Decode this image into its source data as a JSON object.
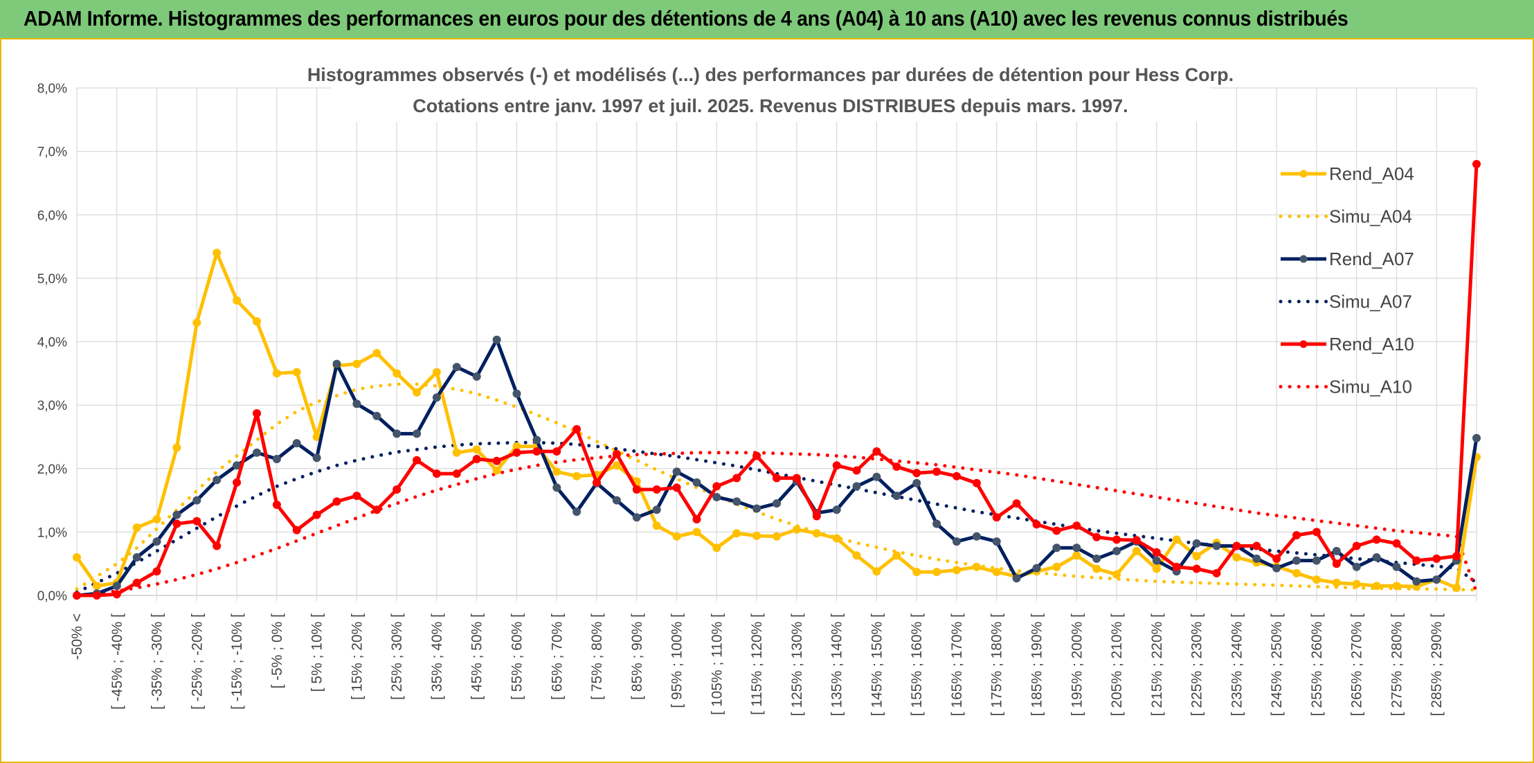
{
  "header": {
    "title": "ADAM Informe. Histogrammes des performances en euros pour des détentions de 4 ans (A04) à 10 ans (A10) avec les revenus connus distribués"
  },
  "chart_data": {
    "type": "line",
    "title": "Histogrammes observés (-) et modélisés (...) des performances par durées de détention pour Hess Corp.",
    "subtitle": "Cotations entre janv. 1997 et juil. 2025. Revenus DISTRIBUES depuis mars. 1997.",
    "xlabel": "",
    "ylabel": "",
    "ylim": [
      0,
      8
    ],
    "yticks": [
      "0,0%",
      "1,0%",
      "2,0%",
      "3,0%",
      "4,0%",
      "5,0%",
      "6,0%",
      "7,0%",
      "8,0%"
    ],
    "grid": true,
    "legend_position": "right",
    "x_tick_labels": [
      "-50% <",
      "[ -45% ; -40% [",
      "[ -35% ; -30% [",
      "[ -25% ; -20% [",
      "[ -15% ; -10% [",
      "[ -5% ; 0% [",
      "[ 5% ; 10% [",
      "[ 15% ; 20% [",
      "[ 25% ; 30% [",
      "[ 35% ; 40% [",
      "[ 45% ; 50% [",
      "[ 55% ; 60% [",
      "[ 65% ; 70% [",
      "[ 75% ; 80% [",
      "[ 85% ; 90% [",
      "[ 95% ; 100% [",
      "[ 105% ; 110% [",
      "[ 115% ; 120% [",
      "[ 125% ; 130% [",
      "[ 135% ; 140% [",
      "[ 145% ; 150% [",
      "[ 155% ; 160% [",
      "[ 165% ; 170% [",
      "[ 175% ; 180% [",
      "[ 185% ; 190% [",
      "[ 195% ; 200% [",
      "[ 205% ; 210% [",
      "[ 215% ; 220% [",
      "[ 225% ; 230% [",
      "[ 235% ; 240% [",
      "[ 245% ; 250% [",
      "[ 255% ; 260% [",
      "[ 265% ; 270% [",
      "[ 275% ; 280% [",
      "[ 285% ; 290% ["
    ],
    "category_count": 71,
    "series": [
      {
        "name": "Rend_A04",
        "color": "#FFC000",
        "style": "solid",
        "values": [
          0.6,
          0.15,
          0.2,
          1.07,
          1.2,
          2.33,
          4.3,
          5.4,
          4.65,
          4.32,
          3.5,
          3.52,
          2.5,
          3.62,
          3.65,
          3.82,
          3.5,
          3.2,
          3.52,
          2.25,
          2.3,
          1.97,
          2.35,
          2.35,
          1.95,
          1.88,
          1.9,
          2.05,
          1.8,
          1.1,
          0.93,
          1.0,
          0.75,
          0.98,
          0.94,
          0.93,
          1.04,
          0.98,
          0.9,
          0.63,
          0.38,
          0.63,
          0.37,
          0.37,
          0.4,
          0.45,
          0.37,
          0.3,
          0.38,
          0.45,
          0.63,
          0.42,
          0.33,
          0.7,
          0.42,
          0.88,
          0.62,
          0.83,
          0.6,
          0.52,
          0.46,
          0.35,
          0.25,
          0.2,
          0.18,
          0.15,
          0.15,
          0.14,
          0.25,
          0.12,
          2.18
        ]
      },
      {
        "name": "Simu_A04",
        "color": "#FFC000",
        "style": "dotted",
        "values": [
          0.1,
          0.3,
          0.5,
          0.75,
          1.05,
          1.35,
          1.65,
          1.95,
          2.2,
          2.45,
          2.7,
          2.9,
          3.05,
          3.15,
          3.25,
          3.3,
          3.33,
          3.33,
          3.3,
          3.25,
          3.18,
          3.08,
          2.97,
          2.85,
          2.72,
          2.58,
          2.43,
          2.28,
          2.13,
          1.98,
          1.84,
          1.7,
          1.57,
          1.44,
          1.32,
          1.2,
          1.1,
          1.0,
          0.91,
          0.83,
          0.76,
          0.69,
          0.63,
          0.57,
          0.52,
          0.47,
          0.43,
          0.39,
          0.36,
          0.33,
          0.3,
          0.28,
          0.26,
          0.24,
          0.22,
          0.21,
          0.2,
          0.19,
          0.18,
          0.17,
          0.16,
          0.15,
          0.14,
          0.13,
          0.12,
          0.11,
          0.11,
          0.1,
          0.1,
          0.09,
          0.09
        ]
      },
      {
        "name": "Rend_A07",
        "color": "#002060",
        "style": "solid",
        "values": [
          0.0,
          0.03,
          0.15,
          0.6,
          0.85,
          1.27,
          1.5,
          1.82,
          2.05,
          2.25,
          2.15,
          2.4,
          2.17,
          3.65,
          3.02,
          2.83,
          2.55,
          2.55,
          3.12,
          3.6,
          3.45,
          4.03,
          3.18,
          2.45,
          1.7,
          1.32,
          1.77,
          1.5,
          1.23,
          1.35,
          1.95,
          1.78,
          1.55,
          1.48,
          1.37,
          1.45,
          1.8,
          1.3,
          1.35,
          1.72,
          1.87,
          1.57,
          1.77,
          1.13,
          0.85,
          0.93,
          0.85,
          0.27,
          0.43,
          0.75,
          0.75,
          0.58,
          0.7,
          0.85,
          0.55,
          0.38,
          0.82,
          0.78,
          0.78,
          0.58,
          0.43,
          0.55,
          0.55,
          0.7,
          0.45,
          0.6,
          0.45,
          0.22,
          0.25,
          0.55,
          2.48
        ]
      },
      {
        "name": "Simu_A07",
        "color": "#002060",
        "style": "dotted",
        "values": [
          0.05,
          0.2,
          0.35,
          0.52,
          0.7,
          0.88,
          1.06,
          1.24,
          1.41,
          1.57,
          1.72,
          1.84,
          1.95,
          2.05,
          2.13,
          2.2,
          2.26,
          2.3,
          2.34,
          2.37,
          2.39,
          2.4,
          2.41,
          2.41,
          2.4,
          2.38,
          2.35,
          2.31,
          2.27,
          2.23,
          2.19,
          2.14,
          2.09,
          2.04,
          1.98,
          1.92,
          1.86,
          1.8,
          1.74,
          1.68,
          1.62,
          1.56,
          1.5,
          1.44,
          1.38,
          1.32,
          1.27,
          1.22,
          1.17,
          1.12,
          1.07,
          1.02,
          0.98,
          0.94,
          0.9,
          0.86,
          0.82,
          0.79,
          0.76,
          0.73,
          0.7,
          0.67,
          0.64,
          0.61,
          0.58,
          0.55,
          0.52,
          0.49,
          0.46,
          0.43,
          0.2
        ]
      },
      {
        "name": "Rend_A10",
        "color": "#FF0000",
        "style": "solid",
        "values": [
          0.0,
          0.0,
          0.02,
          0.2,
          0.38,
          1.13,
          1.17,
          0.78,
          1.78,
          2.87,
          1.43,
          1.03,
          1.27,
          1.48,
          1.57,
          1.35,
          1.67,
          2.13,
          1.92,
          1.92,
          2.15,
          2.12,
          2.25,
          2.27,
          2.27,
          2.62,
          1.78,
          2.23,
          1.67,
          1.67,
          1.7,
          1.2,
          1.72,
          1.85,
          2.2,
          1.85,
          1.85,
          1.25,
          2.05,
          1.97,
          2.27,
          2.03,
          1.93,
          1.95,
          1.88,
          1.77,
          1.23,
          1.45,
          1.12,
          1.02,
          1.1,
          0.92,
          0.88,
          0.87,
          0.68,
          0.45,
          0.42,
          0.35,
          0.78,
          0.78,
          0.58,
          0.95,
          1.0,
          0.5,
          0.78,
          0.88,
          0.82,
          0.55,
          0.58,
          0.62,
          6.8
        ]
      },
      {
        "name": "Simu_A10",
        "color": "#FF0000",
        "style": "dotted",
        "values": [
          0.0,
          0.03,
          0.07,
          0.12,
          0.18,
          0.25,
          0.33,
          0.42,
          0.52,
          0.63,
          0.74,
          0.86,
          0.98,
          1.1,
          1.22,
          1.34,
          1.45,
          1.56,
          1.66,
          1.75,
          1.84,
          1.92,
          1.99,
          2.05,
          2.1,
          2.14,
          2.17,
          2.2,
          2.22,
          2.23,
          2.24,
          2.25,
          2.25,
          2.25,
          2.25,
          2.24,
          2.23,
          2.22,
          2.2,
          2.18,
          2.15,
          2.12,
          2.09,
          2.06,
          2.02,
          1.98,
          1.94,
          1.9,
          1.85,
          1.8,
          1.75,
          1.7,
          1.65,
          1.6,
          1.55,
          1.5,
          1.45,
          1.4,
          1.35,
          1.3,
          1.26,
          1.22,
          1.18,
          1.14,
          1.1,
          1.06,
          1.02,
          0.99,
          0.96,
          0.93,
          0.05
        ]
      }
    ]
  }
}
